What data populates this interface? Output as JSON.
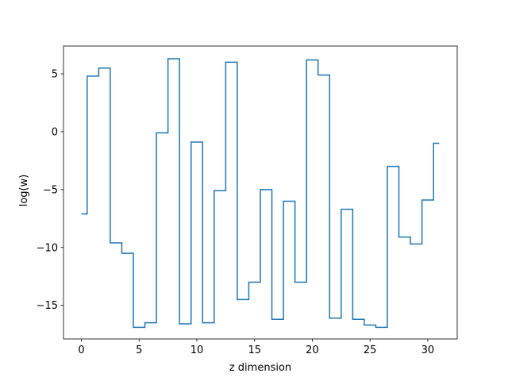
{
  "chart_data": {
    "type": "line",
    "drawstyle": "steps-mid",
    "title": "",
    "xlabel": "z dimension",
    "ylabel": "log(w)",
    "xlim": [
      -1.55,
      32.55
    ],
    "ylim": [
      -17.9,
      7.4
    ],
    "xticks": [
      0,
      5,
      10,
      15,
      20,
      25,
      30
    ],
    "yticks": [
      -15,
      -10,
      -5,
      0,
      5
    ],
    "ytick_labels": [
      "−15",
      "−10",
      "−5",
      "0",
      "5"
    ],
    "xtick_labels": [
      "0",
      "5",
      "10",
      "15",
      "20",
      "25",
      "30"
    ],
    "grid": false,
    "line_color": "#1f77b4",
    "series": [
      {
        "x": [
          0,
          1,
          2,
          3,
          4,
          5,
          6,
          7,
          8,
          9,
          10,
          11,
          12,
          13,
          14,
          15,
          16,
          17,
          18,
          19,
          20,
          21,
          22,
          23,
          24,
          25,
          26,
          27,
          28,
          29,
          30,
          31
        ],
        "values": [
          -7.1,
          4.8,
          5.5,
          -9.6,
          -10.5,
          -16.9,
          -16.5,
          -0.1,
          6.3,
          -16.6,
          -0.9,
          -16.5,
          -5.1,
          6.0,
          -14.5,
          -13.0,
          -5.0,
          -16.2,
          -6.0,
          -13.0,
          6.2,
          4.9,
          -16.1,
          -6.7,
          -16.2,
          -16.7,
          -16.9,
          -3.0,
          -9.1,
          -9.7,
          -5.9,
          -1.0
        ]
      }
    ]
  }
}
